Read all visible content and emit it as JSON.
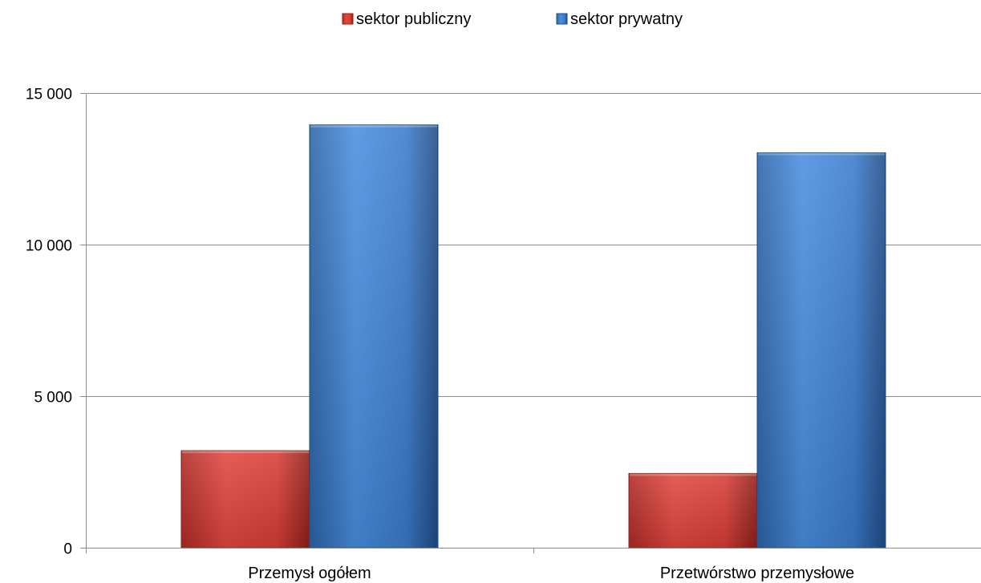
{
  "chart_data": {
    "type": "bar",
    "categories": [
      "Przemysł ogółem",
      "Przetwórstwo przemysłowe"
    ],
    "series": [
      {
        "name": "sektor publiczny",
        "values": [
          3200,
          2450
        ],
        "color": "#d9403a"
      },
      {
        "name": "sektor prywatny",
        "values": [
          13950,
          13030
        ],
        "color": "#3f7fcc"
      }
    ],
    "yticks": [
      {
        "value": 0,
        "label": "0"
      },
      {
        "value": 5000,
        "label": "5 000"
      },
      {
        "value": 10000,
        "label": "10 000"
      },
      {
        "value": 15000,
        "label": "15 000"
      }
    ],
    "ylim": [
      0,
      15000
    ],
    "grid": true,
    "legend_position": "top-center"
  }
}
